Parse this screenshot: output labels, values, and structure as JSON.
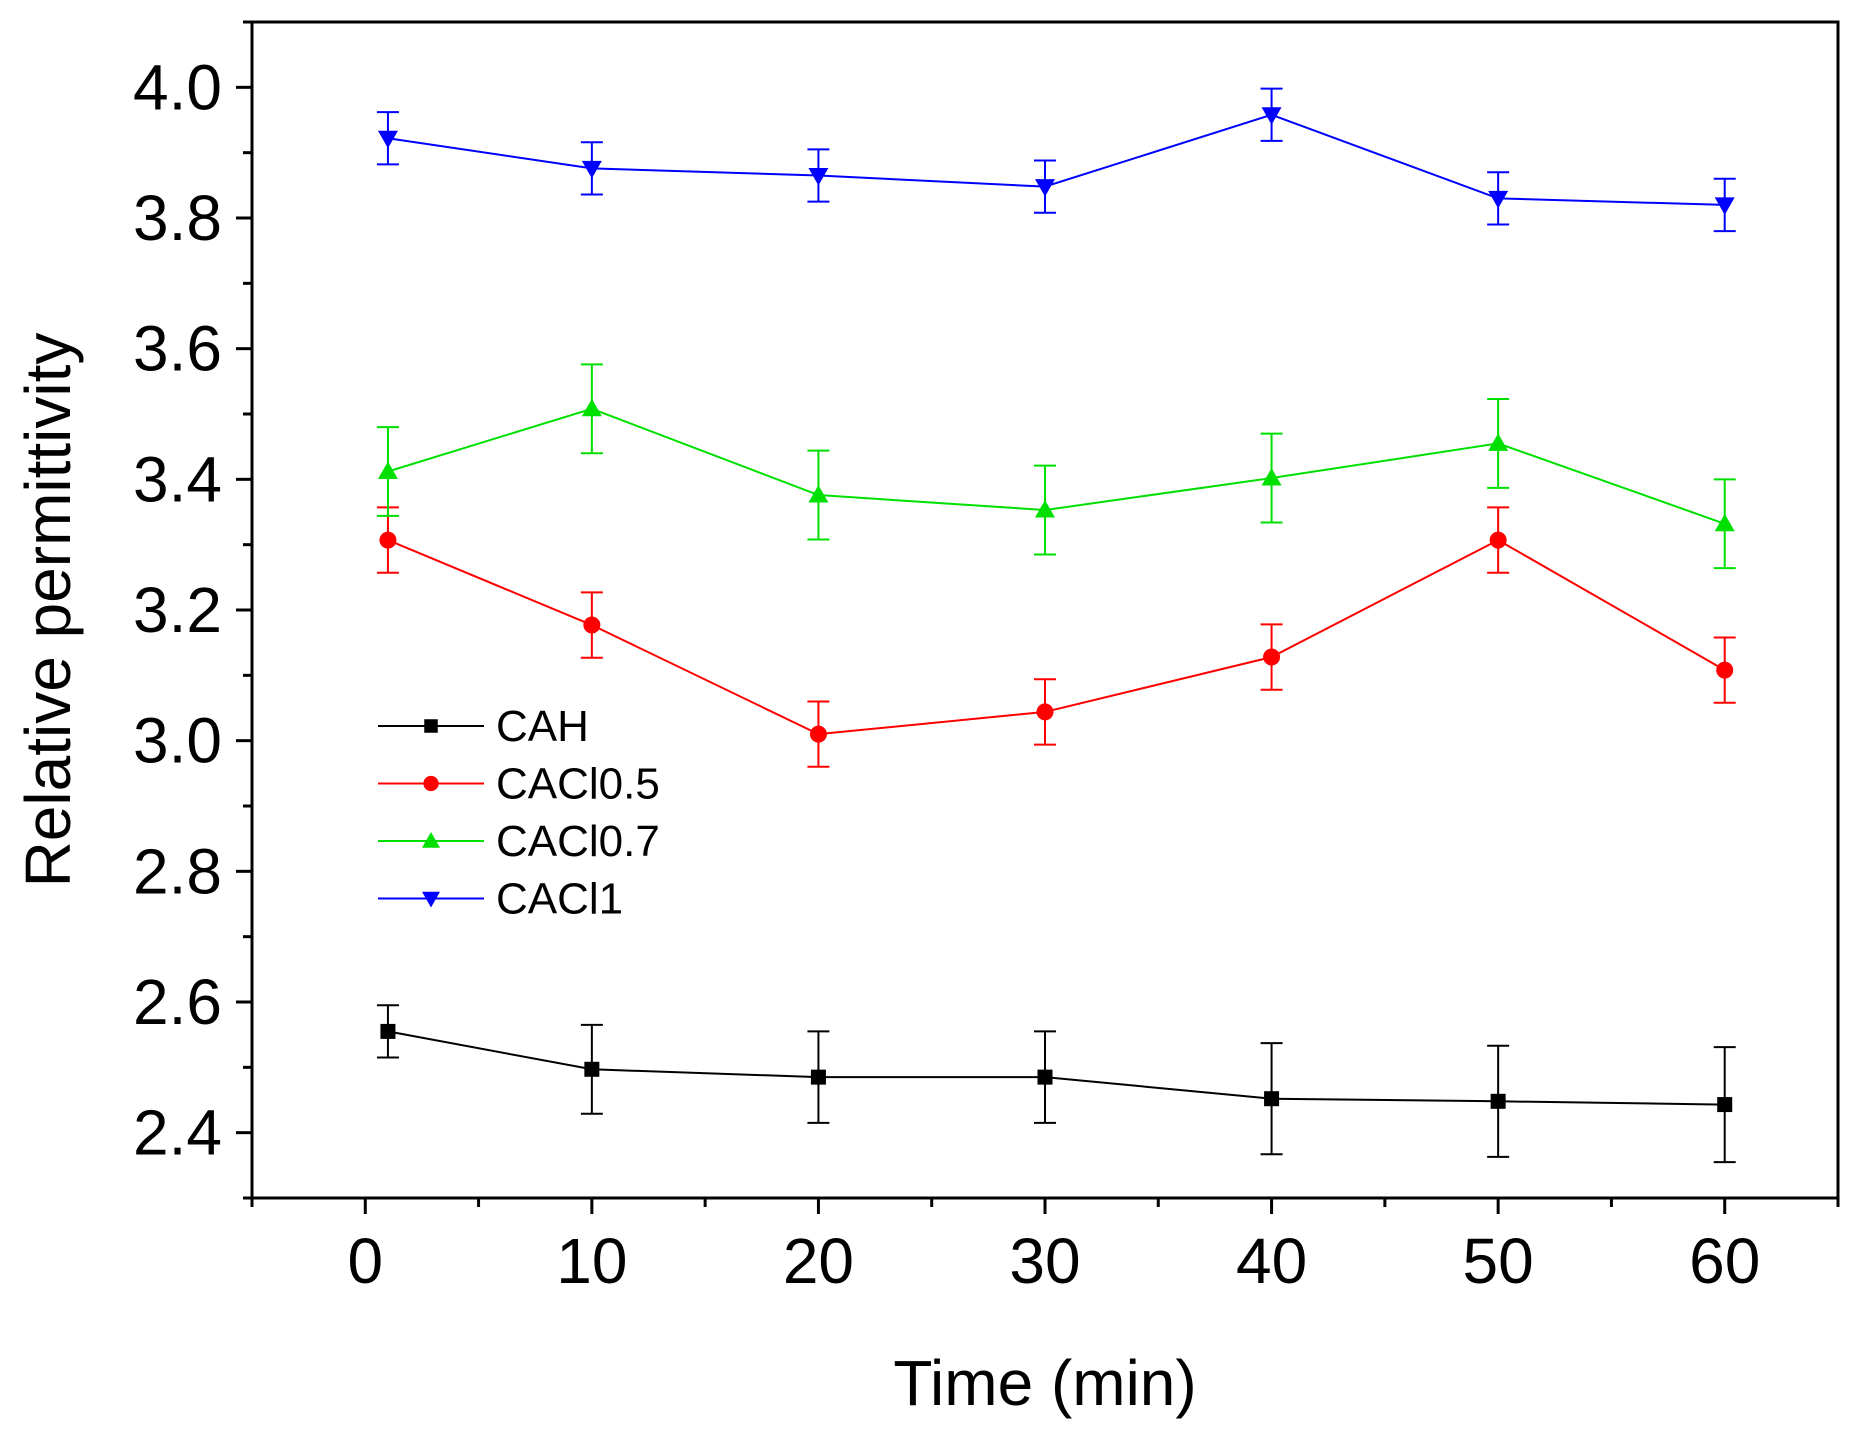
{
  "chart_data": {
    "type": "line",
    "title": "",
    "xlabel": "Time (min)",
    "ylabel": "Relative permittivity",
    "xlim": [
      -5,
      65
    ],
    "ylim": [
      2.3,
      4.1
    ],
    "xticks": [
      0,
      10,
      20,
      30,
      40,
      50,
      60
    ],
    "xtick_labels": [
      "0",
      "10",
      "20",
      "30",
      "40",
      "50",
      "60"
    ],
    "yticks": [
      2.4,
      2.6,
      2.8,
      3.0,
      3.2,
      3.4,
      3.6,
      3.8,
      4.0
    ],
    "ytick_labels": [
      "2.4",
      "2.6",
      "2.8",
      "3.0",
      "3.2",
      "3.4",
      "3.6",
      "3.8",
      "4.0"
    ],
    "grid": false,
    "legend_position": "middle-left",
    "x": [
      1,
      10,
      20,
      30,
      40,
      50,
      60
    ],
    "series": [
      {
        "name": "CAH",
        "color": "#000000",
        "marker": "square",
        "values": [
          2.555,
          2.497,
          2.485,
          2.485,
          2.452,
          2.448,
          2.443
        ],
        "errors": [
          0.04,
          0.068,
          0.07,
          0.07,
          0.085,
          0.085,
          0.088
        ]
      },
      {
        "name": "CACl0.5",
        "color": "#ff0000",
        "marker": "circle",
        "values": [
          3.307,
          3.177,
          3.01,
          3.044,
          3.128,
          3.307,
          3.108
        ],
        "errors": [
          0.05,
          0.05,
          0.05,
          0.05,
          0.05,
          0.05,
          0.05
        ]
      },
      {
        "name": "CACl0.7",
        "color": "#00e000",
        "marker": "triangle-up",
        "values": [
          3.412,
          3.508,
          3.376,
          3.353,
          3.402,
          3.455,
          3.332
        ],
        "errors": [
          0.068,
          0.068,
          0.068,
          0.068,
          0.068,
          0.068,
          0.068
        ]
      },
      {
        "name": "CACl1",
        "color": "#0000ff",
        "marker": "triangle-down",
        "values": [
          3.922,
          3.876,
          3.865,
          3.848,
          3.958,
          3.83,
          3.82
        ],
        "errors": [
          0.04,
          0.04,
          0.04,
          0.04,
          0.04,
          0.04,
          0.04
        ]
      }
    ]
  }
}
